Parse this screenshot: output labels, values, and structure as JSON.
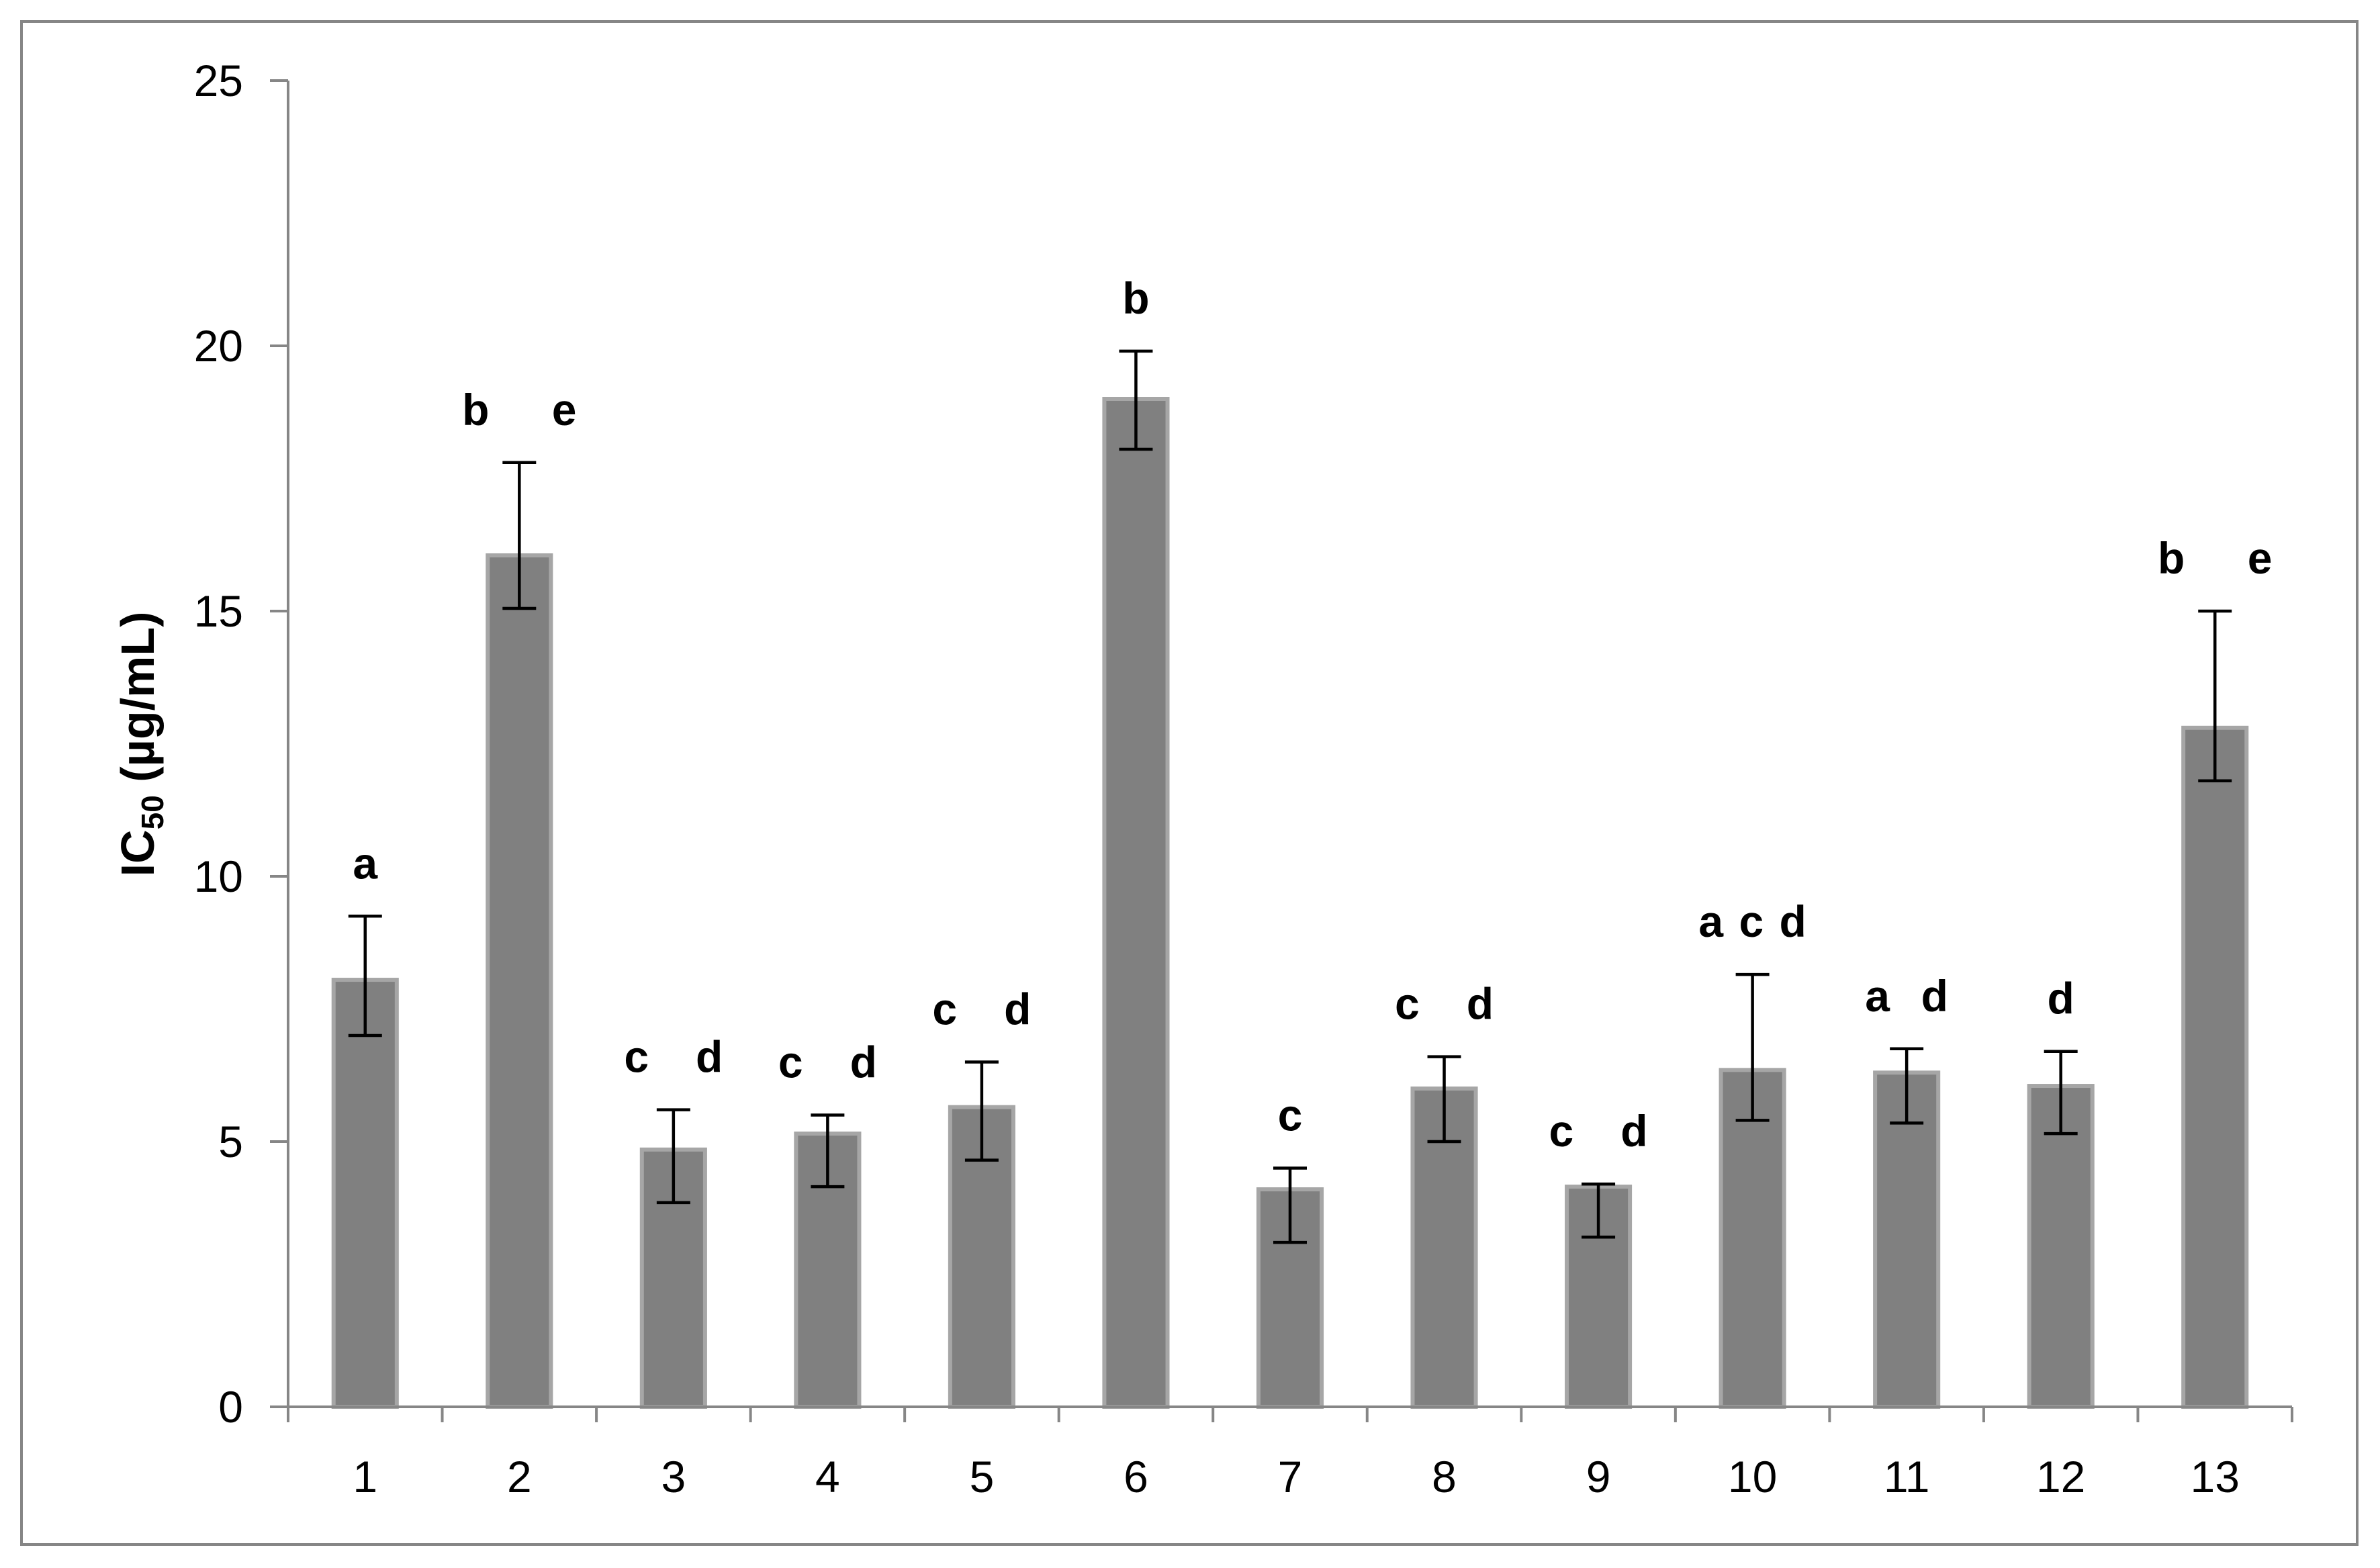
{
  "chart_data": {
    "type": "bar",
    "title": "",
    "xlabel": "",
    "ylabel": {
      "main": "IC",
      "subscript": "50",
      "suffix": " (µg/mL)"
    },
    "categories": [
      "1",
      "2",
      "3",
      "4",
      "5",
      "6",
      "7",
      "8",
      "9",
      "10",
      "11",
      "12",
      "13"
    ],
    "values": [
      8.05,
      16.05,
      4.85,
      5.15,
      5.65,
      19.0,
      4.1,
      6.0,
      4.15,
      6.35,
      6.3,
      6.05,
      12.8
    ],
    "error_plus": [
      1.2,
      1.75,
      0.75,
      0.35,
      0.85,
      0.9,
      0.4,
      0.6,
      0.05,
      1.8,
      0.45,
      0.65,
      2.2
    ],
    "error_minus": [
      1.05,
      1.0,
      1.0,
      1.0,
      1.0,
      0.95,
      1.0,
      1.0,
      0.95,
      0.95,
      0.95,
      0.9,
      1.0
    ],
    "significance_letters": [
      "a",
      "b    e",
      "c   d",
      "c   d",
      "c   d",
      "b",
      "c",
      "c   d",
      "c   d",
      "a c d",
      "a  d",
      "d",
      "b    e"
    ],
    "ylim": [
      0,
      25
    ],
    "y_ticks": [
      0,
      5,
      10,
      15,
      20,
      25
    ],
    "grid": false,
    "legend": "none",
    "colors": {
      "bar_fill": "#808080",
      "bar_edge": "#a6a6a6",
      "error_bar": "#000000",
      "axis": "#868686",
      "frame": "#868686"
    }
  }
}
